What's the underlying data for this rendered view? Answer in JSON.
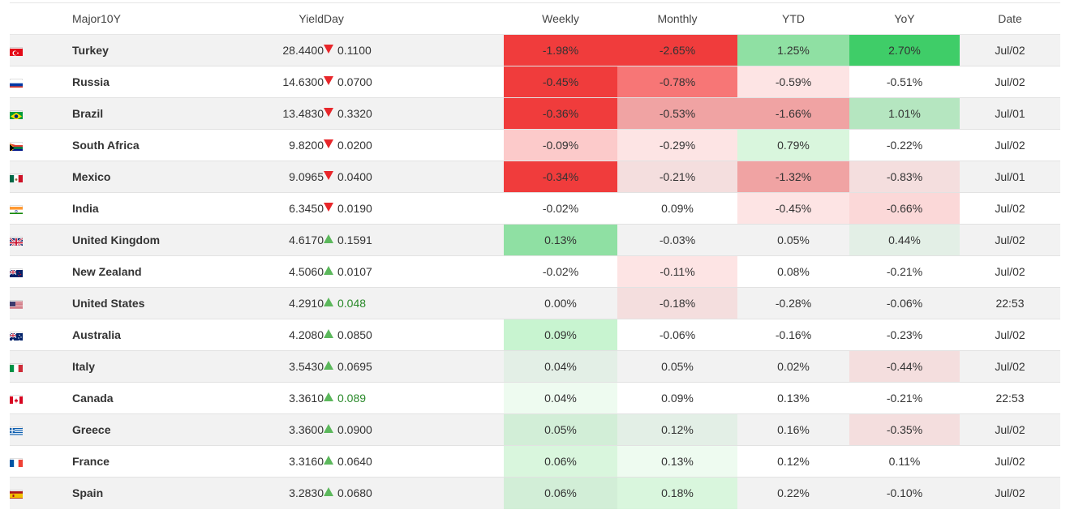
{
  "headers": {
    "flag": "",
    "country": "Major10Y",
    "yield": "Yield",
    "day": "Day",
    "weekly": "Weekly",
    "monthly": "Monthly",
    "ytd": "YTD",
    "yoy": "YoY",
    "date": "Date"
  },
  "rows": [
    {
      "country": "Turkey",
      "flag": "turkey-flag-icon",
      "yield": "28.4400",
      "day": "0.1100",
      "day_dir": "down",
      "weekly": "-1.98%",
      "monthly": "-2.65%",
      "ytd": "1.25%",
      "yoy": "2.70%",
      "date": "Jul/02"
    },
    {
      "country": "Russia",
      "flag": "russia-flag-icon",
      "yield": "14.6300",
      "day": "0.0700",
      "day_dir": "down",
      "weekly": "-0.45%",
      "monthly": "-0.78%",
      "ytd": "-0.59%",
      "yoy": "-0.51%",
      "date": "Jul/02"
    },
    {
      "country": "Brazil",
      "flag": "brazil-flag-icon",
      "yield": "13.4830",
      "day": "0.3320",
      "day_dir": "down",
      "weekly": "-0.36%",
      "monthly": "-0.53%",
      "ytd": "-1.66%",
      "yoy": "1.01%",
      "date": "Jul/01"
    },
    {
      "country": "South Africa",
      "flag": "south-africa-flag-icon",
      "yield": "9.8200",
      "day": "0.0200",
      "day_dir": "down",
      "weekly": "-0.09%",
      "monthly": "-0.29%",
      "ytd": "0.79%",
      "yoy": "-0.22%",
      "date": "Jul/02"
    },
    {
      "country": "Mexico",
      "flag": "mexico-flag-icon",
      "yield": "9.0965",
      "day": "0.0400",
      "day_dir": "down",
      "weekly": "-0.34%",
      "monthly": "-0.21%",
      "ytd": "-1.32%",
      "yoy": "-0.83%",
      "date": "Jul/01"
    },
    {
      "country": "India",
      "flag": "india-flag-icon",
      "yield": "6.3450",
      "day": "0.0190",
      "day_dir": "down",
      "weekly": "-0.02%",
      "monthly": "0.09%",
      "ytd": "-0.45%",
      "yoy": "-0.66%",
      "date": "Jul/02"
    },
    {
      "country": "United Kingdom",
      "flag": "united-kingdom-flag-icon",
      "yield": "4.6170",
      "day": "0.1591",
      "day_dir": "up",
      "weekly": "0.13%",
      "monthly": "-0.03%",
      "ytd": "0.05%",
      "yoy": "0.44%",
      "date": "Jul/02"
    },
    {
      "country": "New Zealand",
      "flag": "new-zealand-flag-icon",
      "yield": "4.5060",
      "day": "0.0107",
      "day_dir": "up",
      "weekly": "-0.02%",
      "monthly": "-0.11%",
      "ytd": "0.08%",
      "yoy": "-0.21%",
      "date": "Jul/02"
    },
    {
      "country": "United States",
      "flag": "united-states-flag-icon",
      "yield": "4.2910",
      "day": "0.048",
      "day_dir": "up",
      "weekly": "0.00%",
      "monthly": "-0.18%",
      "ytd": "-0.28%",
      "yoy": "-0.06%",
      "date": "22:53"
    },
    {
      "country": "Australia",
      "flag": "australia-flag-icon",
      "yield": "4.2080",
      "day": "0.0850",
      "day_dir": "up",
      "weekly": "0.09%",
      "monthly": "-0.06%",
      "ytd": "-0.16%",
      "yoy": "-0.23%",
      "date": "Jul/02"
    },
    {
      "country": "Italy",
      "flag": "italy-flag-icon",
      "yield": "3.5430",
      "day": "0.0695",
      "day_dir": "up",
      "weekly": "0.04%",
      "monthly": "0.05%",
      "ytd": "0.02%",
      "yoy": "-0.44%",
      "date": "Jul/02"
    },
    {
      "country": "Canada",
      "flag": "canada-flag-icon",
      "yield": "3.3610",
      "day": "0.089",
      "day_dir": "up",
      "weekly": "0.04%",
      "monthly": "0.09%",
      "ytd": "0.13%",
      "yoy": "-0.21%",
      "date": "22:53"
    },
    {
      "country": "Greece",
      "flag": "greece-flag-icon",
      "yield": "3.3600",
      "day": "0.0900",
      "day_dir": "up",
      "weekly": "0.05%",
      "monthly": "0.12%",
      "ytd": "0.16%",
      "yoy": "-0.35%",
      "date": "Jul/02"
    },
    {
      "country": "France",
      "flag": "france-flag-icon",
      "yield": "3.3160",
      "day": "0.0640",
      "day_dir": "up",
      "weekly": "0.06%",
      "monthly": "0.13%",
      "ytd": "0.12%",
      "yoy": "0.11%",
      "date": "Jul/02"
    },
    {
      "country": "Spain",
      "flag": "spain-flag-icon",
      "yield": "3.2830",
      "day": "0.0680",
      "day_dir": "up",
      "weekly": "0.06%",
      "monthly": "0.18%",
      "ytd": "0.22%",
      "yoy": "-0.10%",
      "date": "Jul/02"
    }
  ],
  "colors": {
    "down_arrow": "#e8262a",
    "up_arrow": "#5cb85c",
    "day_text_green": "#2a8a2a",
    "row_alt": "#f2f2f2"
  }
}
